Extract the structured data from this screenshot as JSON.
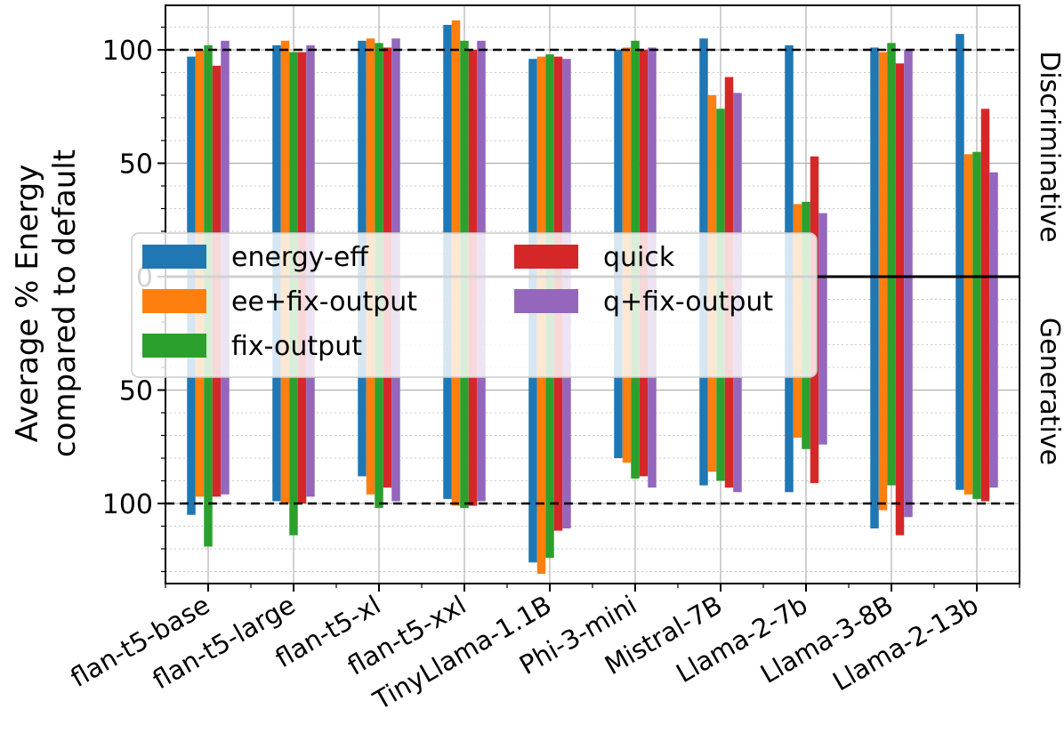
{
  "chart_data": {
    "type": "bar",
    "ylabel_line1": "Average % Energy",
    "ylabel_line2": "compared to default",
    "right_top_label": "Discriminative",
    "right_bottom_label": "Generative",
    "categories": [
      "flan-t5-base",
      "flan-t5-large",
      "flan-t5-xl",
      "flan-t5-xxl",
      "TinyLlama-1.1B",
      "Phi-3-mini",
      "Mistral-7B",
      "Llama-2-7b",
      "Llama-3-8B",
      "Llama-2-13b"
    ],
    "y_ticks_top": [
      "100",
      "50",
      "0"
    ],
    "y_ticks_bottom": [
      "50",
      "100"
    ],
    "ylim_top": [
      0,
      125
    ],
    "ylim_bottom": [
      0,
      135
    ],
    "reference_lines": [
      100
    ],
    "grid": true,
    "legend_position": "center-left",
    "series": [
      {
        "name": "energy-eff",
        "color": "#1f77b4",
        "discriminative": [
          97,
          102,
          104,
          111,
          96,
          100,
          105,
          102,
          101,
          107
        ],
        "generative": [
          105,
          99,
          88,
          98,
          126,
          80,
          92,
          95,
          111,
          94
        ]
      },
      {
        "name": "ee+fix-output",
        "color": "#ff7f0e",
        "discriminative": [
          100,
          104,
          105,
          113,
          97,
          101,
          80,
          32,
          99,
          54
        ],
        "generative": [
          97,
          100,
          96,
          101,
          131,
          82,
          86,
          71,
          103,
          96
        ]
      },
      {
        "name": "fix-output",
        "color": "#2ca02c",
        "discriminative": [
          102,
          99,
          103,
          104,
          98,
          104,
          74,
          33,
          103,
          55
        ],
        "generative": [
          119,
          114,
          102,
          102,
          124,
          89,
          90,
          76,
          92,
          98
        ]
      },
      {
        "name": "quick",
        "color": "#d62728",
        "discriminative": [
          93,
          99,
          101,
          100,
          97,
          100,
          88,
          53,
          94,
          74
        ],
        "generative": [
          97,
          100,
          93,
          101,
          112,
          88,
          93,
          91,
          114,
          99
        ]
      },
      {
        "name": "q+fix-output",
        "color": "#9467bd",
        "discriminative": [
          104,
          102,
          105,
          104,
          96,
          101,
          81,
          28,
          100,
          46
        ],
        "generative": [
          96,
          97,
          99,
          99,
          111,
          93,
          95,
          74,
          106,
          93
        ]
      }
    ]
  }
}
